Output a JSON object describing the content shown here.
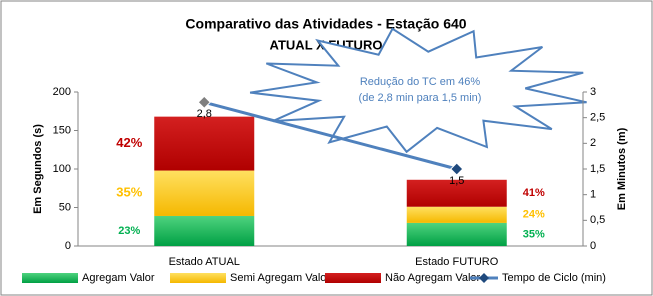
{
  "chart_data": {
    "type": "bar",
    "title": "Comparativo das Atividades - Estação 640",
    "subtitle": "ATUAL X FUTURO",
    "y_label": "Em Segundos (s)",
    "y2_label": "Em Minutos (m)",
    "categories": [
      "Estado ATUAL",
      "Estado FUTURO"
    ],
    "stacked": true,
    "series": [
      {
        "name": "Agregam Valor",
        "color": "#00b050",
        "values": [
          39,
          30
        ],
        "percent_labels": [
          "23%",
          "35%"
        ]
      },
      {
        "name": "Semi Agregam Valor",
        "color": "#ffc000",
        "values": [
          59,
          21
        ],
        "percent_labels": [
          "35%",
          "24%"
        ]
      },
      {
        "name": "Não Agregam Valor",
        "color": "#c00000",
        "values": [
          70,
          35
        ],
        "percent_labels": [
          "42%",
          "41%"
        ]
      },
      {
        "name": "Tempo de Ciclo (min)",
        "color": "#4f81bd",
        "type": "line",
        "axis": "y2",
        "values": [
          2.8,
          1.5
        ],
        "value_labels": [
          "2,8",
          "1,5"
        ]
      }
    ],
    "ylim": [
      0,
      200
    ],
    "yticks": [
      0,
      50,
      100,
      150,
      200
    ],
    "y2lim": [
      0,
      3
    ],
    "y2ticks": [
      0,
      {
        "value": 0.5,
        "label": "0,5"
      },
      1,
      {
        "value": 1.5,
        "label": "1,5"
      },
      2,
      {
        "value": 2.5,
        "label": "2,5"
      },
      3
    ],
    "annotations": [
      "Redução  do TC em 46%",
      "(de 2,8 min para 1,5 min)"
    ],
    "legend": "bottom"
  }
}
